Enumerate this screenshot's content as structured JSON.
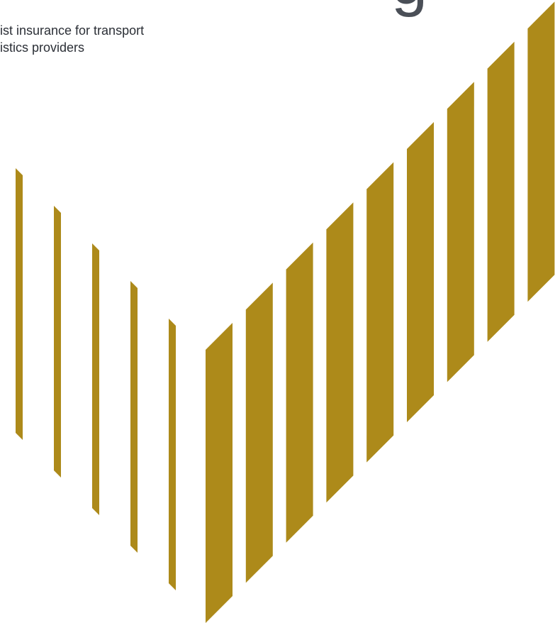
{
  "heading": "g",
  "subtitle": {
    "lines": [
      "ist insurance for transport",
      "istics providers"
    ]
  }
}
